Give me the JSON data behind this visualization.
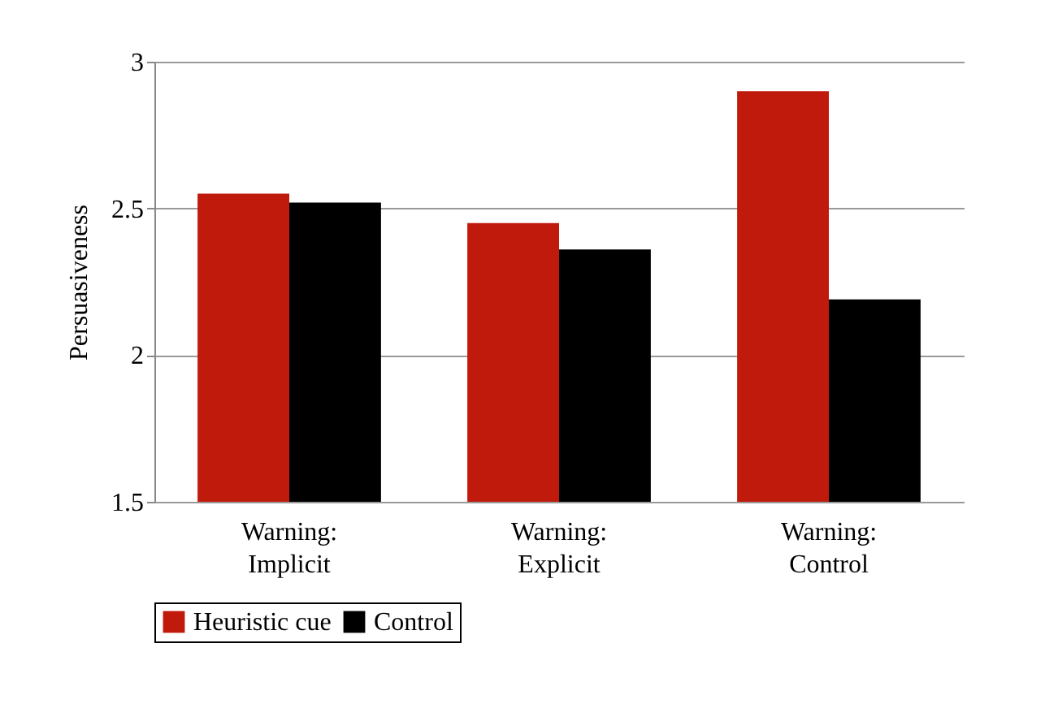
{
  "chart_data": {
    "type": "bar",
    "ylabel": "Persuasiveness",
    "categories": [
      "Warning: Implicit",
      "Warning: Explicit",
      "Warning: Control"
    ],
    "series": [
      {
        "name": "Heuristic cue",
        "color": "#c01a0c",
        "values": [
          2.55,
          2.45,
          2.9
        ]
      },
      {
        "name": "Control",
        "color": "#000000",
        "values": [
          2.52,
          2.36,
          2.19
        ]
      }
    ],
    "ylim": [
      1.5,
      3
    ],
    "yticks": [
      1.5,
      2,
      2.5,
      3
    ],
    "grid": "y",
    "legend": "bottom"
  }
}
